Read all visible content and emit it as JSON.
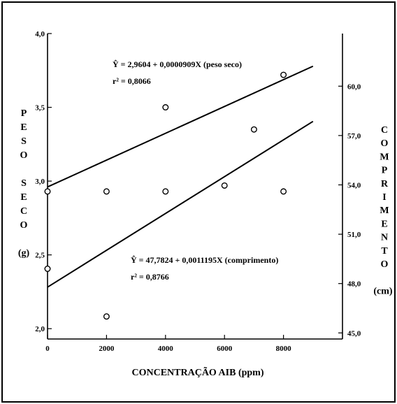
{
  "chart_data": {
    "type": "scatter",
    "title": "",
    "xlabel": "CONCENTRAÇÃO AIB (ppm)",
    "ylabel_left": [
      "P",
      "E",
      "S",
      "O",
      "",
      "S",
      "E",
      "C",
      "O",
      "",
      "(g)"
    ],
    "ylabel_right": [
      "C",
      "O",
      "M",
      "P",
      "R",
      "I",
      "M",
      "E",
      "N",
      "T",
      "O",
      "",
      "(cm)"
    ],
    "x_ticks": [
      "0",
      "2000",
      "4000",
      "6000",
      "8000"
    ],
    "y_left_ticks": [
      "2,0",
      "2,5",
      "3,0",
      "3,5",
      "4,0"
    ],
    "y_right_ticks": [
      "45,0",
      "48,0",
      "51,0",
      "54,0",
      "57,0",
      "60,0"
    ],
    "xlim": [
      0,
      10000
    ],
    "ylim_left": [
      1.93,
      4.0
    ],
    "ylim_right": [
      44.63,
      63.2
    ],
    "series": [
      {
        "name": "peso seco",
        "axis": "left",
        "points": [
          {
            "x": 0,
            "y": 2.93
          },
          {
            "x": 2000,
            "y": 2.93
          },
          {
            "x": 4000,
            "y": 3.5
          },
          {
            "x": 4000,
            "y": 2.93
          },
          {
            "x": 6000,
            "y": 2.97
          },
          {
            "x": 7000,
            "y": 3.35
          },
          {
            "x": 8000,
            "y": 3.72
          }
        ],
        "fit": {
          "intercept": 2.9604,
          "slope": 9.09e-05,
          "x_end": 9000
        }
      },
      {
        "name": "comprimento",
        "axis": "right",
        "points": [
          {
            "x": 0,
            "y": 48.9
          },
          {
            "x": 2000,
            "y": 46.0
          },
          {
            "x": 8000,
            "y": 53.6
          }
        ],
        "fit": {
          "intercept": 47.7824,
          "slope": 0.0011195,
          "x_end": 9000
        }
      }
    ],
    "annotations": [
      {
        "line1": "Ŷ = 2,9604 + 0,0000909X (peso seco)",
        "line2": "r² = 0,8066"
      },
      {
        "line1": "Ŷ = 47,7824 + 0,0011195X (comprimento)",
        "line2": "r² = 0,8766"
      }
    ],
    "grid": false,
    "legend": "none"
  }
}
